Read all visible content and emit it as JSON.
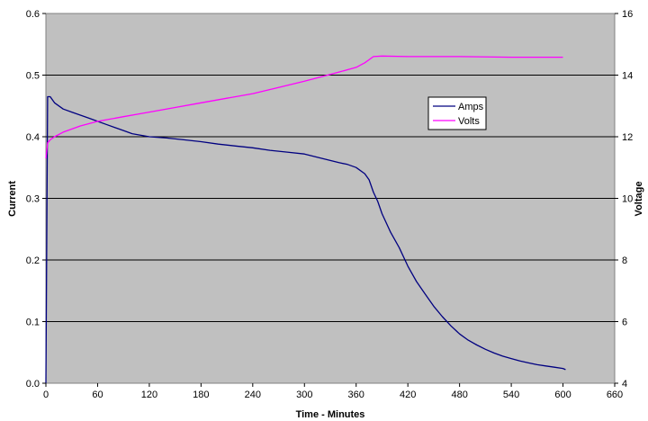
{
  "chart_data": {
    "type": "line",
    "title": "",
    "xlabel": "Time - Minutes",
    "ylabel": "Current",
    "y2label": "Voltage",
    "xlim": [
      0,
      660
    ],
    "ylim": [
      0,
      0.6
    ],
    "y2lim": [
      4,
      16
    ],
    "xticks": [
      "0",
      "60",
      "120",
      "180",
      "240",
      "300",
      "360",
      "420",
      "480",
      "540",
      "600",
      "660"
    ],
    "yticks": [
      "0.0",
      "0.1",
      "0.2",
      "0.3",
      "0.4",
      "0.5",
      "0.6"
    ],
    "y2ticks": [
      "4",
      "6",
      "8",
      "10",
      "12",
      "14",
      "16"
    ],
    "x_tick_values": [
      0,
      60,
      120,
      180,
      240,
      300,
      360,
      420,
      480,
      540,
      600,
      660
    ],
    "y_tick_values": [
      0,
      0.1,
      0.2,
      0.3,
      0.4,
      0.5,
      0.6
    ],
    "y2_tick_values": [
      4,
      6,
      8,
      10,
      12,
      14,
      16
    ],
    "grid": "horizontal",
    "plot_background": "#c0c0c0",
    "legend_position": "right, inside plot",
    "series": [
      {
        "name": "Amps",
        "axis": "left",
        "color": "#000080",
        "x": [
          0,
          2,
          5,
          10,
          20,
          30,
          40,
          50,
          60,
          70,
          80,
          90,
          100,
          120,
          140,
          160,
          180,
          200,
          220,
          240,
          260,
          280,
          300,
          320,
          340,
          350,
          360,
          370,
          375,
          380,
          385,
          390,
          400,
          410,
          420,
          430,
          440,
          450,
          460,
          470,
          480,
          490,
          500,
          510,
          520,
          530,
          540,
          550,
          560,
          570,
          580,
          590,
          600,
          603
        ],
        "y": [
          0.0,
          0.465,
          0.465,
          0.455,
          0.445,
          0.44,
          0.435,
          0.43,
          0.425,
          0.42,
          0.415,
          0.41,
          0.405,
          0.4,
          0.398,
          0.395,
          0.392,
          0.388,
          0.385,
          0.382,
          0.378,
          0.375,
          0.372,
          0.365,
          0.358,
          0.355,
          0.35,
          0.34,
          0.33,
          0.31,
          0.295,
          0.275,
          0.245,
          0.22,
          0.19,
          0.165,
          0.145,
          0.125,
          0.108,
          0.093,
          0.08,
          0.07,
          0.062,
          0.055,
          0.049,
          0.044,
          0.04,
          0.036,
          0.033,
          0.03,
          0.028,
          0.026,
          0.024,
          0.022
        ]
      },
      {
        "name": "Volts",
        "axis": "right",
        "color": "#ff00ff",
        "x": [
          0,
          2,
          5,
          10,
          20,
          40,
          60,
          90,
          120,
          150,
          180,
          210,
          240,
          270,
          300,
          320,
          340,
          360,
          370,
          375,
          380,
          390,
          420,
          480,
          540,
          600
        ],
        "y": [
          11.3,
          11.8,
          11.9,
          12.0,
          12.15,
          12.35,
          12.5,
          12.65,
          12.8,
          12.95,
          13.1,
          13.25,
          13.4,
          13.6,
          13.8,
          13.95,
          14.1,
          14.25,
          14.4,
          14.5,
          14.6,
          14.62,
          14.6,
          14.6,
          14.58,
          14.58
        ]
      }
    ]
  }
}
